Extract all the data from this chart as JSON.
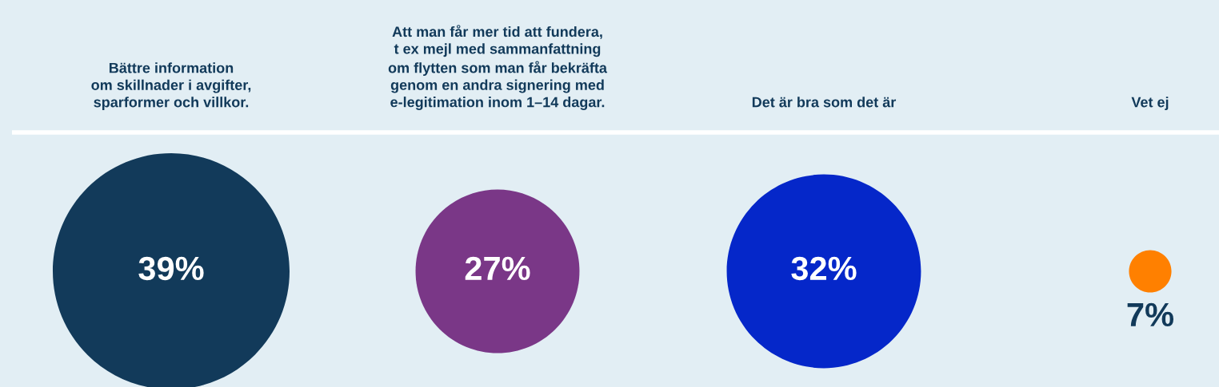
{
  "chart_data": {
    "type": "other",
    "categories": [
      "Bättre information\nom skillnader i avgifter,\nsparformer och villkor.",
      "Att man får mer tid att fundera,\nt ex mejl med sammanfattning\nom flytten som man får bekräfta\ngenom en andra signering med\ne-legitimation inom 1–14 dagar.",
      "Det är bra som det är",
      "Vet ej"
    ],
    "values": [
      39,
      27,
      32,
      7
    ],
    "colors": [
      "#123a5a",
      "#7a3787",
      "#0527c9",
      "#ff8000"
    ],
    "value_labels": [
      "39%",
      "27%",
      "32%",
      "7%"
    ]
  }
}
